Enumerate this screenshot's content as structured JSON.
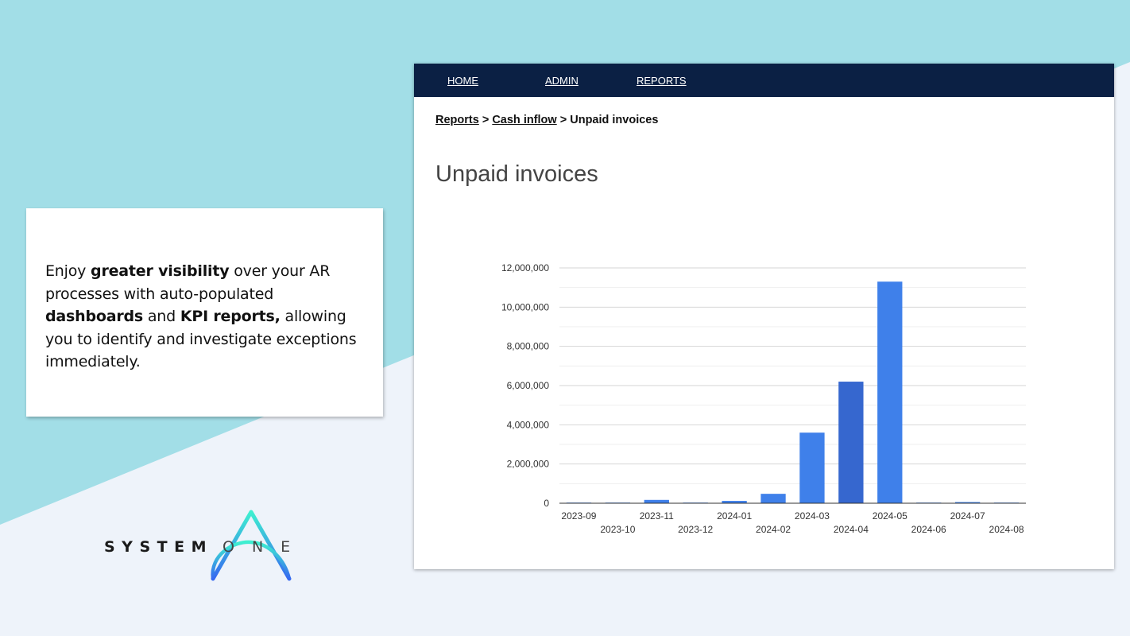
{
  "promo": {
    "seg1": "Enjoy ",
    "seg2": "greater visibility",
    "seg3": " over your AR processes with auto-populated ",
    "seg4": "dashboards",
    "seg5": " and ",
    "seg6": "KPI reports,",
    "seg7": " allowing you to identify and investigate exceptions immediately."
  },
  "logo": {
    "word1": "SYSTEM",
    "word2": "ONE"
  },
  "nav": {
    "home": "HOME",
    "admin": "ADMIN",
    "reports": "REPORTS"
  },
  "breadcrumb": {
    "level1": "Reports",
    "sep1": " > ",
    "level2": "Cash inflow",
    "sep2": " > ",
    "current": "Unpaid invoices"
  },
  "page": {
    "title": "Unpaid invoices"
  },
  "colors": {
    "background_top": "#a2dee7",
    "background_bottom": "#eef3fa",
    "nav_bg": "#0b2044",
    "bar": "#3f80ea",
    "bar_highlight": "#3667cf",
    "logo_gradient_start": "#3ef0d0",
    "logo_gradient_end": "#3568f0"
  },
  "chart_data": {
    "type": "bar",
    "title": "",
    "xlabel": "",
    "ylabel": "",
    "categories": [
      "2023-09",
      "2023-10",
      "2023-11",
      "2023-12",
      "2024-01",
      "2024-02",
      "2024-03",
      "2024-04",
      "2024-05",
      "2024-06",
      "2024-07",
      "2024-08"
    ],
    "values": [
      30000,
      20000,
      170000,
      10000,
      120000,
      480000,
      3600000,
      6200000,
      11300000,
      30000,
      60000,
      20000
    ],
    "highlighted_index": 7,
    "ylim": [
      0,
      12000000
    ],
    "yticks": [
      0,
      2000000,
      4000000,
      6000000,
      8000000,
      10000000,
      12000000
    ],
    "ytick_labels": [
      "0",
      "2,000,000",
      "4,000,000",
      "6,000,000",
      "8,000,000",
      "10,000,000",
      "12,000,000"
    ],
    "grid": true,
    "legend": "none"
  }
}
